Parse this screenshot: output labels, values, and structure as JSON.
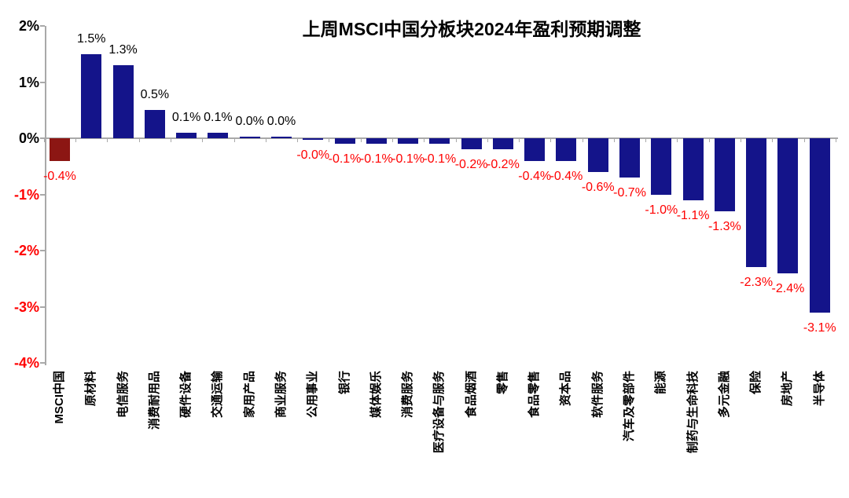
{
  "chart_data": {
    "type": "bar",
    "title": "上周MSCI中国分板块2024年盈利预期调整",
    "categories": [
      "MSCI中国",
      "原材料",
      "电信服务",
      "消费耐用品",
      "硬件设备",
      "交通运输",
      "家用产品",
      "商业服务",
      "公用事业",
      "银行",
      "媒体娱乐",
      "消费服务",
      "医疗设备与服务",
      "食品烟酒",
      "零售",
      "食品零售",
      "资本品",
      "软件服务",
      "汽车及零部件",
      "能源",
      "制药与生命科技",
      "多元金融",
      "保险",
      "房地产",
      "半导体"
    ],
    "values": [
      -0.4,
      1.5,
      1.3,
      0.5,
      0.1,
      0.1,
      0.0,
      0.0,
      -0.0,
      -0.1,
      -0.1,
      -0.1,
      -0.1,
      -0.2,
      -0.2,
      -0.4,
      -0.4,
      -0.6,
      -0.7,
      -1.0,
      -1.1,
      -1.3,
      -2.3,
      -2.4,
      -3.1
    ],
    "value_labels": [
      "-0.4%",
      "1.5%",
      "1.3%",
      "0.5%",
      "0.1%",
      "0.1%",
      "0.0%",
      "0.0%",
      "-0.0%",
      "-0.1%",
      "-0.1%",
      "-0.1%",
      "-0.1%",
      "-0.2%",
      "-0.2%",
      "-0.4%",
      "-0.4%",
      "-0.6%",
      "-0.7%",
      "-1.0%",
      "-1.1%",
      "-1.3%",
      "-2.3%",
      "-2.4%",
      "-3.1%"
    ],
    "xlabel": "",
    "ylabel": "",
    "ylim": [
      -4,
      2
    ],
    "yticks": [
      {
        "label": "2%",
        "value": 2
      },
      {
        "label": "1%",
        "value": 1
      },
      {
        "label": "0%",
        "value": 0
      },
      {
        "label": "-1%",
        "value": -1
      },
      {
        "label": "-2%",
        "value": -2
      },
      {
        "label": "-3%",
        "value": -3
      },
      {
        "label": "-4%",
        "value": -4
      }
    ],
    "grid": false,
    "legend": null,
    "highlight_index": 0,
    "colors": {
      "default_bar": "#14148A",
      "highlight_bar": "#8C1613",
      "negative_text": "#FF0000",
      "positive_text": "#000000",
      "axis": "#A9A9A9"
    }
  }
}
